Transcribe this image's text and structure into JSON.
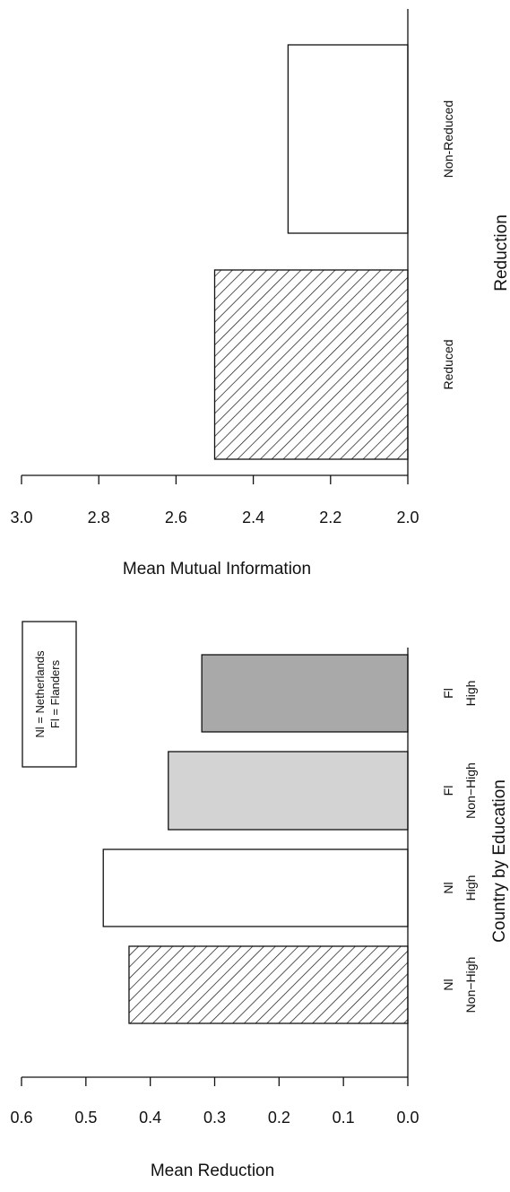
{
  "chart_data": [
    {
      "type": "bar",
      "orientation": "horizontal",
      "categories": [
        "Reduced",
        "Non-Reduced"
      ],
      "values": [
        2.5,
        2.31
      ],
      "patterns": [
        "hatched",
        "white"
      ],
      "xlabel": "Mean Mutual Information",
      "ylabel": "Reduction",
      "xlim": [
        2.0,
        3.0
      ],
      "x_reversed": true,
      "ticks": [
        3.0,
        2.8,
        2.6,
        2.4,
        2.2,
        2.0
      ],
      "tick_labels": [
        "3.0",
        "2.8",
        "2.6",
        "2.4",
        "2.2",
        "2.0"
      ]
    },
    {
      "type": "bar",
      "orientation": "horizontal",
      "categories": [
        {
          "line1": "Nl",
          "line2": "Non−High"
        },
        {
          "line1": "Nl",
          "line2": "High"
        },
        {
          "line1": "Fl",
          "line2": "Non−High"
        },
        {
          "line1": "Fl",
          "line2": "High"
        }
      ],
      "values": [
        0.433,
        0.473,
        0.372,
        0.32
      ],
      "patterns": [
        "hatched",
        "white",
        "#d3d3d3",
        "#a9a9a9"
      ],
      "xlabel": "Mean Reduction",
      "ylabel": "Country by Education",
      "xlim": [
        0.0,
        0.6
      ],
      "x_reversed": true,
      "ticks": [
        0.6,
        0.5,
        0.4,
        0.3,
        0.2,
        0.1,
        0.0
      ],
      "tick_labels": [
        "0.6",
        "0.5",
        "0.4",
        "0.3",
        "0.2",
        "0.1",
        "0.0"
      ],
      "legend": {
        "lines": [
          "Nl = Netherlands",
          "Fl = Flanders"
        ]
      }
    }
  ]
}
